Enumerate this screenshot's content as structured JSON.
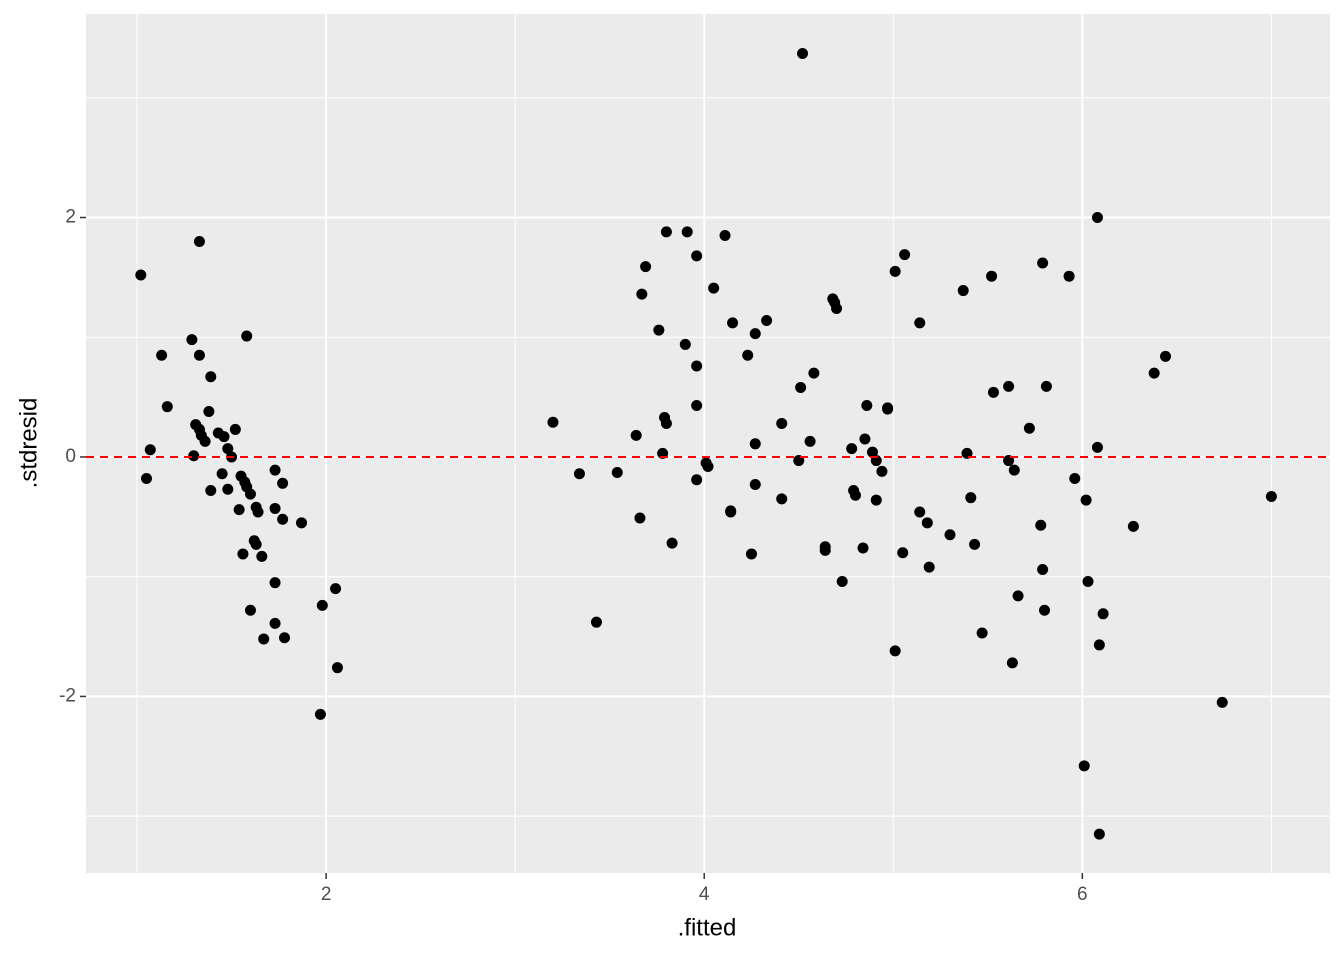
{
  "chart_data": {
    "type": "scatter",
    "xlabel": ".fitted",
    "ylabel": ".stdresid",
    "x": [
      1.02,
      1.05,
      1.07,
      1.13,
      1.16,
      1.29,
      1.3,
      1.31,
      1.33,
      1.33,
      1.33,
      1.34,
      1.36,
      1.38,
      1.39,
      1.39,
      1.43,
      1.45,
      1.46,
      1.48,
      1.48,
      1.5,
      1.52,
      1.54,
      1.55,
      1.56,
      1.57,
      1.58,
      1.58,
      1.6,
      1.6,
      1.62,
      1.63,
      1.63,
      1.64,
      1.66,
      1.67,
      1.73,
      1.73,
      1.73,
      1.73,
      1.77,
      1.77,
      1.78,
      1.87,
      1.97,
      1.98,
      2.05,
      2.06,
      3.2,
      3.34,
      3.43,
      3.54,
      3.64,
      3.66,
      3.67,
      3.69,
      3.76,
      3.78,
      3.79,
      3.8,
      3.8,
      3.83,
      3.9,
      3.91,
      3.96,
      3.96,
      3.96,
      3.96,
      4.01,
      4.02,
      4.05,
      4.11,
      4.14,
      4.14,
      4.15,
      4.23,
      4.25,
      4.27,
      4.27,
      4.27,
      4.33,
      4.41,
      4.41,
      4.5,
      4.51,
      4.52,
      4.56,
      4.58,
      4.64,
      4.64,
      4.68,
      4.69,
      4.7,
      4.73,
      4.78,
      4.79,
      4.8,
      4.84,
      4.85,
      4.86,
      4.89,
      4.91,
      4.91,
      4.94,
      4.97,
      4.97,
      5.01,
      5.01,
      5.05,
      5.06,
      5.14,
      5.14,
      5.18,
      5.19,
      5.3,
      5.37,
      5.39,
      5.41,
      5.43,
      5.47,
      5.52,
      5.53,
      5.61,
      5.61,
      5.63,
      5.64,
      5.66,
      5.72,
      5.78,
      5.79,
      5.79,
      5.8,
      5.81,
      5.93,
      5.96,
      6.01,
      6.02,
      6.03,
      6.08,
      6.08,
      6.09,
      6.09,
      6.11,
      6.27,
      6.38,
      6.44,
      6.74,
      7.0
    ],
    "values": [
      1.52,
      -0.18,
      0.06,
      0.85,
      0.42,
      0.98,
      0.01,
      0.27,
      1.8,
      0.85,
      0.23,
      0.18,
      0.13,
      0.38,
      0.67,
      -0.28,
      0.2,
      -0.14,
      0.17,
      0.07,
      -0.27,
      0.0,
      0.23,
      -0.44,
      -0.16,
      -0.81,
      -0.21,
      1.01,
      -0.25,
      -0.31,
      -1.28,
      -0.7,
      -0.42,
      -0.73,
      -0.46,
      -0.83,
      -1.52,
      -0.11,
      -0.43,
      -1.05,
      -1.39,
      -0.22,
      -0.52,
      -1.51,
      -0.55,
      -2.15,
      -1.24,
      -1.1,
      -1.76,
      0.29,
      -0.14,
      -1.38,
      -0.13,
      0.18,
      -0.51,
      1.36,
      1.59,
      1.06,
      0.03,
      0.33,
      1.88,
      0.28,
      -0.72,
      0.94,
      1.88,
      0.76,
      -0.19,
      1.68,
      0.43,
      -0.05,
      -0.08,
      1.41,
      1.85,
      -0.45,
      -0.46,
      1.12,
      0.85,
      -0.81,
      0.11,
      -0.23,
      1.03,
      1.14,
      0.28,
      -0.35,
      -0.03,
      0.58,
      3.37,
      0.13,
      0.7,
      -0.75,
      -0.78,
      1.32,
      1.29,
      1.24,
      -1.04,
      0.07,
      -0.28,
      -0.32,
      -0.76,
      0.15,
      0.43,
      0.04,
      -0.03,
      -0.36,
      -0.12,
      0.4,
      0.41,
      1.55,
      -1.62,
      -0.8,
      1.69,
      1.12,
      -0.46,
      -0.55,
      -0.92,
      -0.65,
      1.39,
      0.03,
      -0.34,
      -0.73,
      -1.47,
      1.51,
      0.54,
      0.59,
      -0.03,
      -1.72,
      -0.11,
      -1.16,
      0.24,
      -0.57,
      1.62,
      -0.94,
      -1.28,
      0.59,
      1.51,
      -0.18,
      -2.58,
      -0.36,
      -1.04,
      0.08,
      2.0,
      -1.57,
      -3.15,
      -1.31,
      -0.58,
      0.7,
      0.84,
      -2.05,
      -0.33
    ],
    "color": "#000000",
    "xlim": [
      0.73,
      7.31
    ],
    "ylim": [
      -3.475,
      3.7
    ],
    "xticks": [
      2,
      4,
      6
    ],
    "yticks": [
      -2,
      0,
      2
    ],
    "x_minor_grid": [
      1,
      3,
      5,
      7
    ],
    "y_minor_grid": [
      -3,
      -1,
      1,
      3
    ],
    "grid": true,
    "hline": {
      "y": 0,
      "color": "#ff0000",
      "dashed": true
    }
  }
}
